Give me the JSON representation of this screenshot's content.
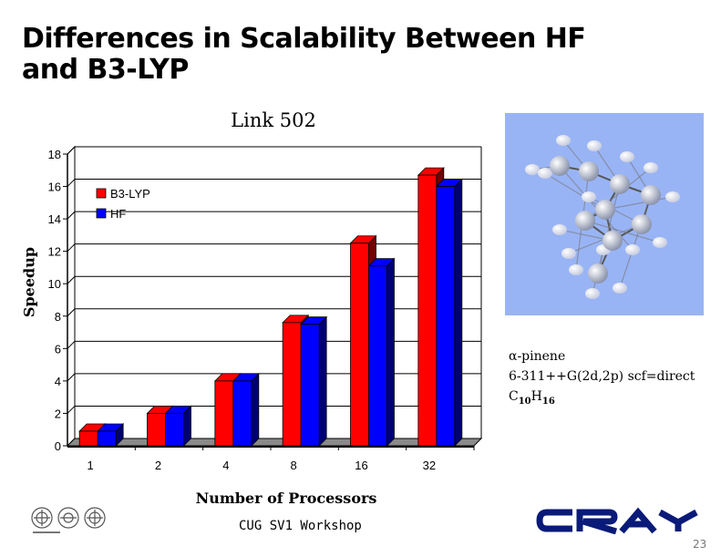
{
  "slide": {
    "title_line1": "Differences in Scalability Between HF",
    "title_line2": "and B3-LYP",
    "footer": "CUG SV1 Workshop",
    "page_number": "23"
  },
  "molecule": {
    "name": "α-pinene",
    "method": "6-311++G(2d,2p) scf=direct",
    "formula_c": "C",
    "formula_c_sub": "10",
    "formula_h": "H",
    "formula_h_sub": "16",
    "background_color": "#99b4f5"
  },
  "chart_data": {
    "type": "bar",
    "title": "Link 502",
    "xlabel": "Number of Processors",
    "ylabel": "Speedup",
    "categories": [
      "1",
      "2",
      "4",
      "8",
      "16",
      "32"
    ],
    "series": [
      {
        "name": "B3-LYP",
        "color": "#ff0000",
        "values": [
          0.9,
          2.0,
          4.0,
          7.6,
          12.5,
          16.7
        ]
      },
      {
        "name": "HF",
        "color": "#0000ff",
        "values": [
          0.9,
          2.0,
          4.0,
          7.5,
          11.1,
          16.0
        ]
      }
    ],
    "ylim": [
      0,
      18
    ],
    "yticks": [
      "0",
      "2",
      "4",
      "6",
      "8",
      "10",
      "12",
      "14",
      "16",
      "18"
    ],
    "grid": true,
    "legend_position": "top-left",
    "style": "3d"
  }
}
